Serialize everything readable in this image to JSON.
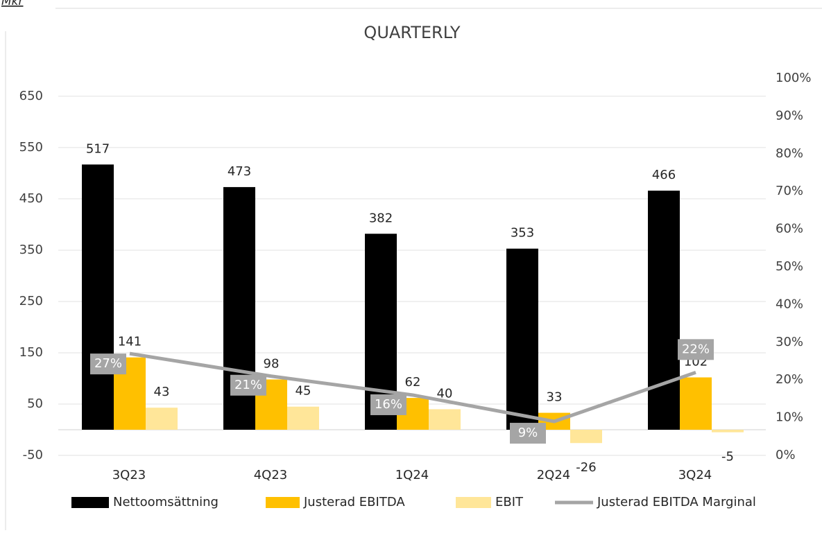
{
  "chart_data": {
    "type": "bar",
    "unit_label": "Mkr",
    "title": "QUARTERLY",
    "categories": [
      "3Q23",
      "4Q23",
      "1Q24",
      "2Q24",
      "3Q24"
    ],
    "series": [
      {
        "name": "Nettoomsättning",
        "color": "#000000",
        "values": [
          517,
          473,
          382,
          353,
          466
        ]
      },
      {
        "name": "Justerad EBITDA",
        "color": "#ffc000",
        "values": [
          141,
          98,
          62,
          33,
          102
        ]
      },
      {
        "name": "EBIT",
        "color": "#ffe699",
        "values": [
          43,
          45,
          40,
          -26,
          -5
        ]
      },
      {
        "name": "Justerad EBITDA Marginal",
        "color": "#a5a5a5",
        "type": "line",
        "axis": "y2",
        "values": [
          27,
          21,
          16,
          9,
          22
        ],
        "value_labels": [
          "27%",
          "21%",
          "16%",
          "9%",
          "22%"
        ]
      }
    ],
    "ylim": [
      -50,
      685
    ],
    "yticks": [
      -50,
      50,
      150,
      250,
      350,
      450,
      550,
      650
    ],
    "y2lim": [
      0,
      100
    ],
    "y2ticks": [
      {
        "value": 0,
        "label": "0%"
      },
      {
        "value": 10,
        "label": "10%"
      },
      {
        "value": 20,
        "label": "20%"
      },
      {
        "value": 30,
        "label": "30%"
      },
      {
        "value": 40,
        "label": "40%"
      },
      {
        "value": 50,
        "label": "50%"
      },
      {
        "value": 60,
        "label": "60%"
      },
      {
        "value": 70,
        "label": "70%"
      },
      {
        "value": 80,
        "label": "80%"
      },
      {
        "value": 90,
        "label": "90%"
      },
      {
        "value": 100,
        "label": "100%"
      }
    ],
    "grid": true,
    "legend": "bottom"
  }
}
